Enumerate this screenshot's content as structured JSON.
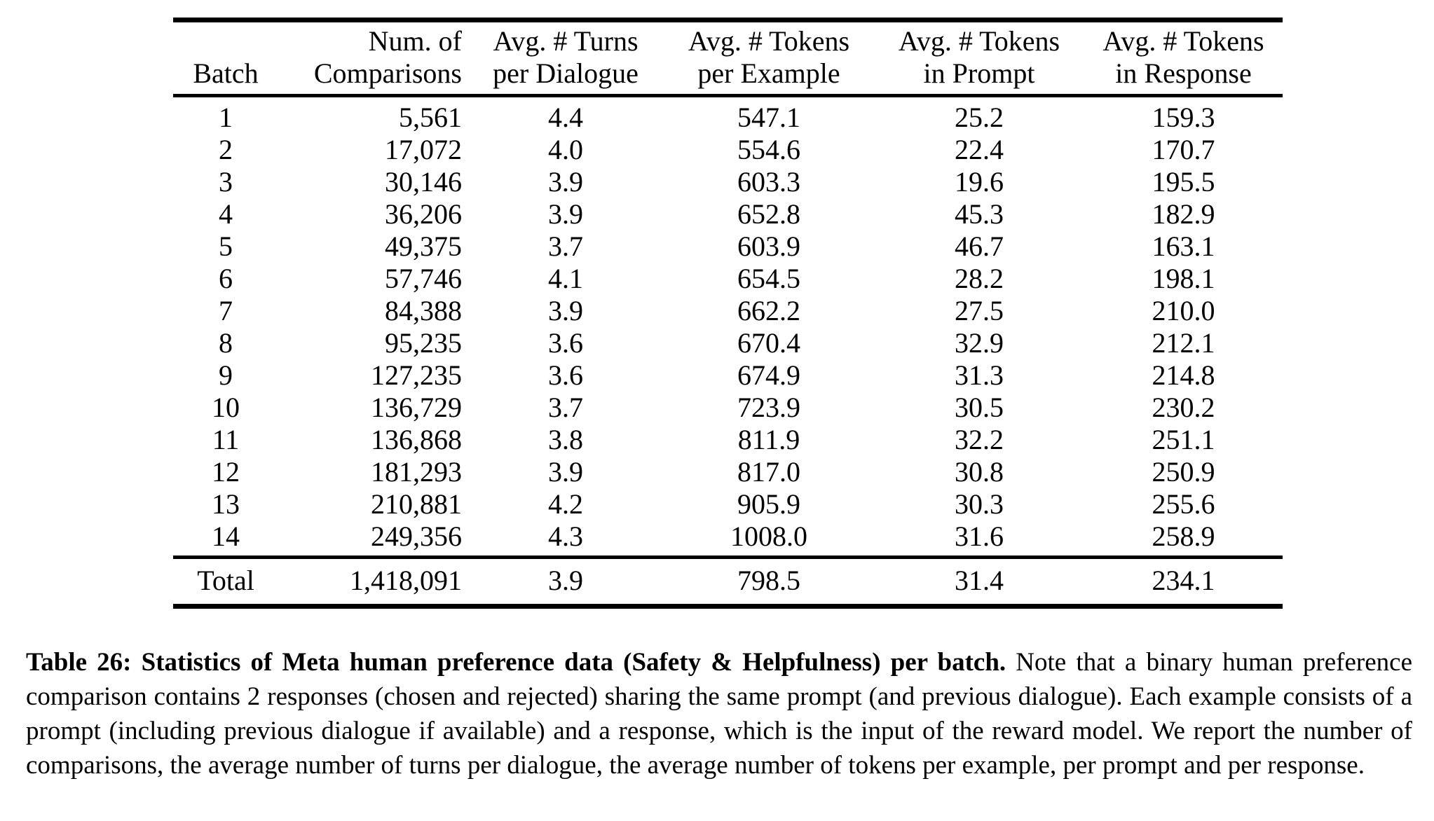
{
  "colors": {
    "background": "#ffffff",
    "text": "#000000",
    "rule": "#000000"
  },
  "table": {
    "name": "Table 26",
    "columns": [
      {
        "line1": "",
        "line2": "Batch"
      },
      {
        "line1": "Num. of",
        "line2": "Comparisons"
      },
      {
        "line1": "Avg. # Turns",
        "line2": "per Dialogue"
      },
      {
        "line1": "Avg. # Tokens",
        "line2": "per Example"
      },
      {
        "line1": "Avg. # Tokens",
        "line2": "in Prompt"
      },
      {
        "line1": "Avg. # Tokens",
        "line2": "in Response"
      }
    ],
    "rows": [
      [
        "1",
        "5,561",
        "4.4",
        "547.1",
        "25.2",
        "159.3"
      ],
      [
        "2",
        "17,072",
        "4.0",
        "554.6",
        "22.4",
        "170.7"
      ],
      [
        "3",
        "30,146",
        "3.9",
        "603.3",
        "19.6",
        "195.5"
      ],
      [
        "4",
        "36,206",
        "3.9",
        "652.8",
        "45.3",
        "182.9"
      ],
      [
        "5",
        "49,375",
        "3.7",
        "603.9",
        "46.7",
        "163.1"
      ],
      [
        "6",
        "57,746",
        "4.1",
        "654.5",
        "28.2",
        "198.1"
      ],
      [
        "7",
        "84,388",
        "3.9",
        "662.2",
        "27.5",
        "210.0"
      ],
      [
        "8",
        "95,235",
        "3.6",
        "670.4",
        "32.9",
        "212.1"
      ],
      [
        "9",
        "127,235",
        "3.6",
        "674.9",
        "31.3",
        "214.8"
      ],
      [
        "10",
        "136,729",
        "3.7",
        "723.9",
        "30.5",
        "230.2"
      ],
      [
        "11",
        "136,868",
        "3.8",
        "811.9",
        "32.2",
        "251.1"
      ],
      [
        "12",
        "181,293",
        "3.9",
        "817.0",
        "30.8",
        "250.9"
      ],
      [
        "13",
        "210,881",
        "4.2",
        "905.9",
        "30.3",
        "255.6"
      ],
      [
        "14",
        "249,356",
        "4.3",
        "1008.0",
        "31.6",
        "258.9"
      ]
    ],
    "total_row": [
      "Total",
      "1,418,091",
      "3.9",
      "798.5",
      "31.4",
      "234.1"
    ]
  },
  "caption": {
    "bold": "Table 26: Statistics of Meta human preference data (Safety & Helpfulness) per batch.",
    "text": " Note that a binary human preference comparison contains 2 responses (chosen and rejected) sharing the same prompt (and previous dialogue). Each example consists of a prompt (including previous dialogue if available) and a response, which is the input of the reward model. We report the number of comparisons, the average number of turns per dialogue, the average number of tokens per example, per prompt and per response."
  }
}
